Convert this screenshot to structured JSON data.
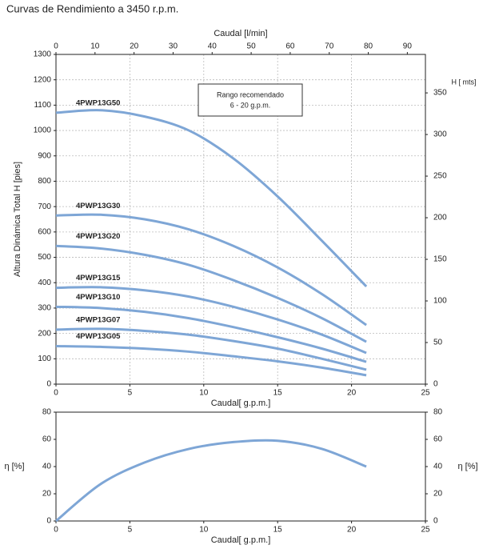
{
  "chart_data": [
    {
      "type": "line",
      "title": "Curvas de Rendimiento a 3450 r.p.m.",
      "xlabel": "Caudal[ g.p.m.]",
      "x2label": "Caudal [l/min]",
      "ylabel": "Altura Dinámica Total H [pies]",
      "y2label": "H [ mts]",
      "annotation": [
        "Rango recomendado",
        "6 - 20 g.p.m."
      ],
      "x": [
        0,
        3,
        6,
        9,
        12,
        15,
        18,
        21
      ],
      "xlim": [
        0,
        25
      ],
      "xticks": [
        0,
        5,
        10,
        15,
        20,
        25
      ],
      "x2lim": [
        0,
        94.635
      ],
      "x2ticks": [
        0,
        10,
        20,
        30,
        40,
        50,
        60,
        70,
        80,
        90
      ],
      "ylim": [
        0,
        1300
      ],
      "yticks": [
        0,
        100,
        200,
        300,
        400,
        500,
        600,
        700,
        800,
        900,
        1000,
        1100,
        1200,
        1300
      ],
      "y2lim": [
        0,
        396.24
      ],
      "y2ticks": [
        0,
        50,
        100,
        150,
        200,
        250,
        300,
        350
      ],
      "grid": true,
      "series": [
        {
          "name": "4PWP13G50",
          "color": "#7ea6d6",
          "values": [
            1070,
            1080,
            1055,
            1000,
            890,
            740,
            565,
            385
          ]
        },
        {
          "name": "4PWP13G30",
          "color": "#7ea6d6",
          "values": [
            665,
            668,
            650,
            610,
            545,
            460,
            355,
            233
          ]
        },
        {
          "name": "4PWP13G20",
          "color": "#7ea6d6",
          "values": [
            545,
            535,
            510,
            470,
            410,
            340,
            260,
            167
          ]
        },
        {
          "name": "4PWP13G15",
          "color": "#7ea6d6",
          "values": [
            380,
            382,
            370,
            345,
            305,
            255,
            195,
            123
          ]
        },
        {
          "name": "4PWP13G10",
          "color": "#7ea6d6",
          "values": [
            305,
            300,
            285,
            260,
            225,
            185,
            140,
            88
          ]
        },
        {
          "name": "4PWP13G07",
          "color": "#7ea6d6",
          "values": [
            215,
            218,
            210,
            195,
            170,
            140,
            100,
            57
          ]
        },
        {
          "name": "4PWP13G05",
          "color": "#7ea6d6",
          "values": [
            150,
            147,
            140,
            128,
            110,
            90,
            65,
            35
          ]
        }
      ]
    },
    {
      "type": "line",
      "xlabel": "Caudal[ g.p.m.]",
      "ylabel": "η [%]",
      "y2label": "η [%]",
      "x": [
        0,
        3,
        6,
        9,
        12,
        15,
        18,
        21
      ],
      "xlim": [
        0,
        25
      ],
      "xticks": [
        0,
        5,
        10,
        15,
        20,
        25
      ],
      "ylim": [
        0,
        80
      ],
      "yticks": [
        0,
        20,
        40,
        60,
        80
      ],
      "y2lim": [
        0,
        80
      ],
      "y2ticks": [
        0,
        20,
        40,
        60,
        80
      ],
      "grid": false,
      "series": [
        {
          "color": "#7ea6d6",
          "values": [
            0,
            27,
            43,
            53,
            58,
            59,
            53,
            40
          ]
        }
      ]
    }
  ]
}
